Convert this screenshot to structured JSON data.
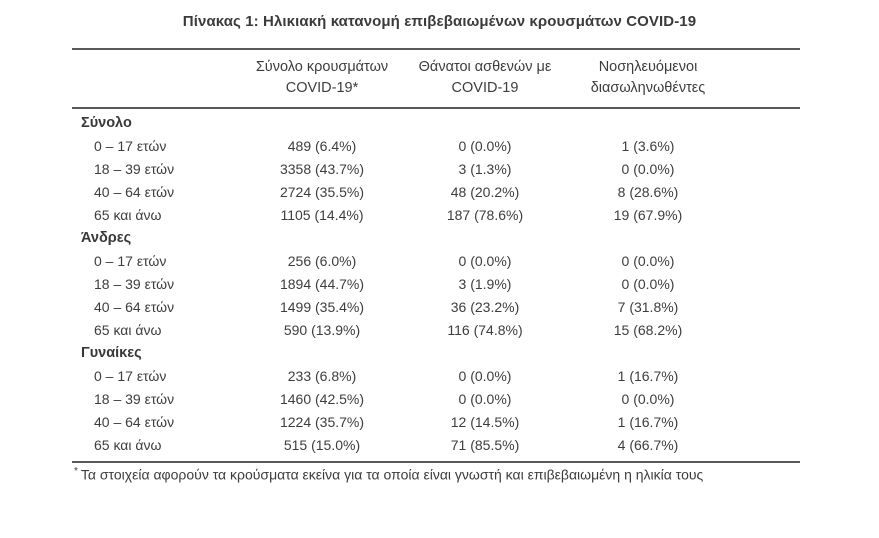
{
  "title": "Πίνακας 1: Ηλικιακή κατανομή επιβεβαιωμένων κρουσμάτων COVID-19",
  "table": {
    "columns": [
      {
        "line1": "Σύνολο κρουσμάτων",
        "line2": "COVID-19*"
      },
      {
        "line1": "Θάνατοι ασθενών με",
        "line2": "COVID-19"
      },
      {
        "line1": "Νοσηλευόμενοι",
        "line2": "διασωληνωθέντες"
      }
    ],
    "sections": [
      {
        "header": "Σύνολο",
        "rows": [
          {
            "label": "0 – 17 ετών",
            "cases": "489 (6.4%)",
            "deaths": "0 (0.0%)",
            "intubated": "1 (3.6%)"
          },
          {
            "label": "18 – 39 ετών",
            "cases": "3358 (43.7%)",
            "deaths": "3 (1.3%)",
            "intubated": "0 (0.0%)"
          },
          {
            "label": "40 – 64 ετών",
            "cases": "2724 (35.5%)",
            "deaths": "48 (20.2%)",
            "intubated": "8 (28.6%)"
          },
          {
            "label": "65 και άνω",
            "cases": "1105 (14.4%)",
            "deaths": "187 (78.6%)",
            "intubated": "19 (67.9%)"
          }
        ]
      },
      {
        "header": "Άνδρες",
        "rows": [
          {
            "label": "0 – 17 ετών",
            "cases": "256 (6.0%)",
            "deaths": "0 (0.0%)",
            "intubated": "0 (0.0%)"
          },
          {
            "label": "18 – 39 ετών",
            "cases": "1894 (44.7%)",
            "deaths": "3 (1.9%)",
            "intubated": "0 (0.0%)"
          },
          {
            "label": "40 – 64 ετών",
            "cases": "1499 (35.4%)",
            "deaths": "36 (23.2%)",
            "intubated": "7 (31.8%)"
          },
          {
            "label": "65 και άνω",
            "cases": "590 (13.9%)",
            "deaths": "116 (74.8%)",
            "intubated": "15 (68.2%)"
          }
        ]
      },
      {
        "header": "Γυναίκες",
        "rows": [
          {
            "label": "0 – 17 ετών",
            "cases": "233 (6.8%)",
            "deaths": "0 (0.0%)",
            "intubated": "1 (16.7%)"
          },
          {
            "label": "18 – 39 ετών",
            "cases": "1460 (42.5%)",
            "deaths": "0 (0.0%)",
            "intubated": "0 (0.0%)"
          },
          {
            "label": "40 – 64 ετών",
            "cases": "1224 (35.7%)",
            "deaths": "12 (14.5%)",
            "intubated": "1 (16.7%)"
          },
          {
            "label": "65 και άνω",
            "cases": "515 (15.0%)",
            "deaths": "71 (85.5%)",
            "intubated": "4 (66.7%)"
          }
        ]
      }
    ]
  },
  "footnote": {
    "marker": "*",
    "text": "Τα στοιχεία αφορούν τα κρούσματα εκείνα για τα οποία είναι γνωστή και επιβεβαιωμένη η ηλικία τους"
  },
  "colors": {
    "text": "#3d3d3d",
    "rule": "#58595b",
    "background": "#ffffff"
  }
}
